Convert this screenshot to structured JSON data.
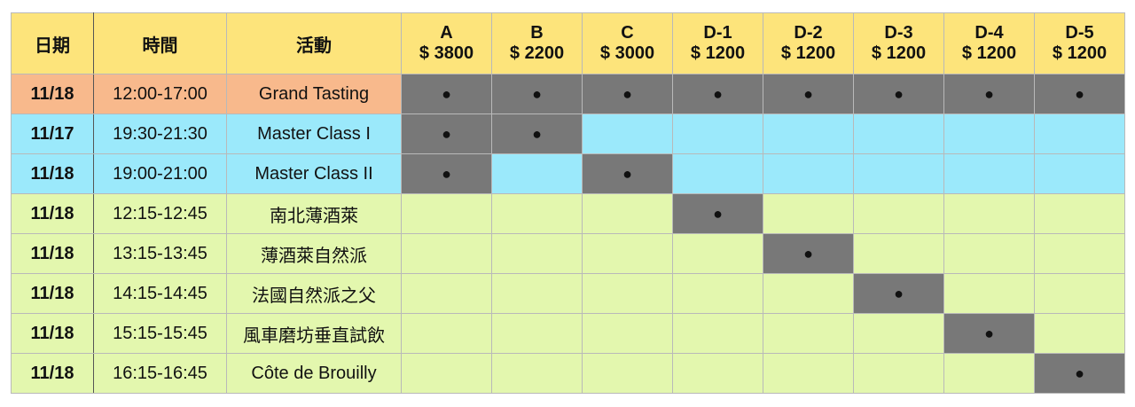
{
  "table": {
    "columns": [
      "日期",
      "時間",
      "活動"
    ],
    "tickets": [
      {
        "name": "A",
        "price": "$ 3800"
      },
      {
        "name": "B",
        "price": "$ 2200"
      },
      {
        "name": "C",
        "price": "$ 3000"
      },
      {
        "name": "D-1",
        "price": "$ 1200"
      },
      {
        "name": "D-2",
        "price": "$ 1200"
      },
      {
        "name": "D-3",
        "price": "$ 1200"
      },
      {
        "name": "D-4",
        "price": "$ 1200"
      },
      {
        "name": "D-5",
        "price": "$ 1200"
      }
    ],
    "rows": [
      {
        "date": "11/18",
        "time": "12:00-17:00",
        "activity": "Grand Tasting",
        "color": "#f8b98c",
        "cells": [
          "●",
          "●",
          "●",
          "●",
          "●",
          "●",
          "●",
          "●"
        ]
      },
      {
        "date": "11/17",
        "time": "19:30-21:30",
        "activity": "Master Class I",
        "color": "#9be9fb",
        "cells": [
          "●",
          "●",
          null,
          null,
          null,
          null,
          null,
          null
        ]
      },
      {
        "date": "11/18",
        "time": "19:00-21:00",
        "activity": "Master Class II",
        "color": "#9be9fb",
        "cells": [
          "●",
          null,
          "●",
          null,
          null,
          null,
          null,
          null
        ]
      },
      {
        "date": "11/18",
        "time": "12:15-12:45",
        "activity": "南北薄酒萊",
        "color": "#e3f7ae",
        "cells": [
          null,
          null,
          null,
          "●",
          null,
          null,
          null,
          null
        ]
      },
      {
        "date": "11/18",
        "time": "13:15-13:45",
        "activity": "薄酒萊自然派",
        "color": "#e3f7ae",
        "cells": [
          null,
          null,
          null,
          null,
          "●",
          null,
          null,
          null
        ]
      },
      {
        "date": "11/18",
        "time": "14:15-14:45",
        "activity": "法國自然派之父",
        "color": "#e3f7ae",
        "cells": [
          null,
          null,
          null,
          null,
          null,
          "●",
          null,
          null
        ]
      },
      {
        "date": "11/18",
        "time": "15:15-15:45",
        "activity": "風車磨坊垂直試飲",
        "color": "#e3f7ae",
        "cells": [
          null,
          null,
          null,
          null,
          null,
          null,
          "●",
          null
        ]
      },
      {
        "date": "11/18",
        "time": "16:15-16:45",
        "activity": "Côte de Brouilly",
        "color": "#e3f7ae",
        "cells": [
          null,
          null,
          null,
          null,
          null,
          null,
          null,
          "●"
        ]
      }
    ]
  }
}
